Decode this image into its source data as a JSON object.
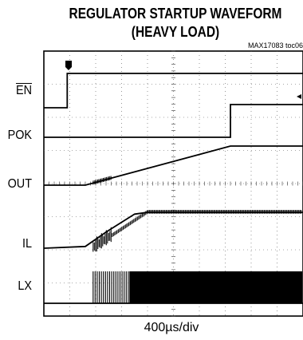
{
  "chart_data": {
    "type": "line",
    "title_line1": "REGULATOR STARTUP WAVEFORM",
    "title_line2": "(HEAVY LOAD)",
    "reference": "MAX17083 toc06",
    "x_scale": "400µs/div",
    "grid": true,
    "x_divisions": 10,
    "y_divisions": 8,
    "series": [
      {
        "name": "EN",
        "overbar": true,
        "points": [
          [
            0,
            0
          ],
          [
            0.9,
            0
          ],
          [
            0.9,
            1
          ],
          [
            10,
            1
          ]
        ]
      },
      {
        "name": "POK",
        "overbar": false,
        "points": [
          [
            0,
            0
          ],
          [
            7.2,
            0
          ],
          [
            7.2,
            1
          ],
          [
            10,
            1
          ]
        ]
      },
      {
        "name": "OUT",
        "overbar": false,
        "points": [
          [
            0,
            0
          ],
          [
            1.6,
            0
          ],
          [
            7.2,
            1
          ],
          [
            10,
            1
          ]
        ]
      },
      {
        "name": "IL",
        "overbar": false,
        "points": [
          [
            0,
            0
          ],
          [
            1.6,
            0.05
          ],
          [
            2.4,
            0.45
          ],
          [
            3.5,
            0.95
          ],
          [
            4.0,
            1
          ],
          [
            10,
            1
          ]
        ]
      },
      {
        "name": "LX",
        "overbar": false,
        "points": [
          [
            0,
            0
          ],
          [
            1.6,
            0
          ],
          [
            2.8,
            0
          ],
          [
            10,
            0
          ]
        ]
      }
    ]
  }
}
